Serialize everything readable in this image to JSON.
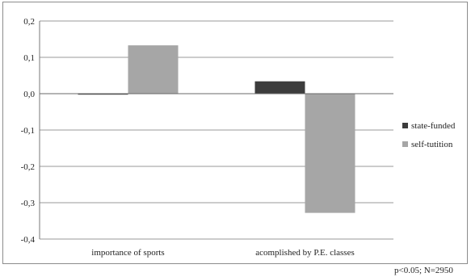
{
  "chart_data": {
    "type": "bar",
    "categories": [
      "importance of sports",
      "acomplished by P.E. classes"
    ],
    "series": [
      {
        "name": "state-funded",
        "values": [
          -0.002,
          0.034
        ],
        "color": "#3c3c3c"
      },
      {
        "name": "self-tutition",
        "values": [
          0.133,
          -0.328
        ],
        "color": "#a6a6a6"
      }
    ],
    "ylim": [
      -0.4,
      0.2
    ],
    "yticks": [
      0.2,
      0.1,
      0.0,
      -0.1,
      -0.2,
      -0.3,
      -0.4
    ],
    "ytick_labels": [
      "0,2",
      "0,1",
      "0,0",
      "-0,1",
      "-0,2",
      "-0,3",
      "-0,4"
    ],
    "grid": true,
    "legend_position": "right"
  },
  "footnote": "p<0.05; N=2950"
}
